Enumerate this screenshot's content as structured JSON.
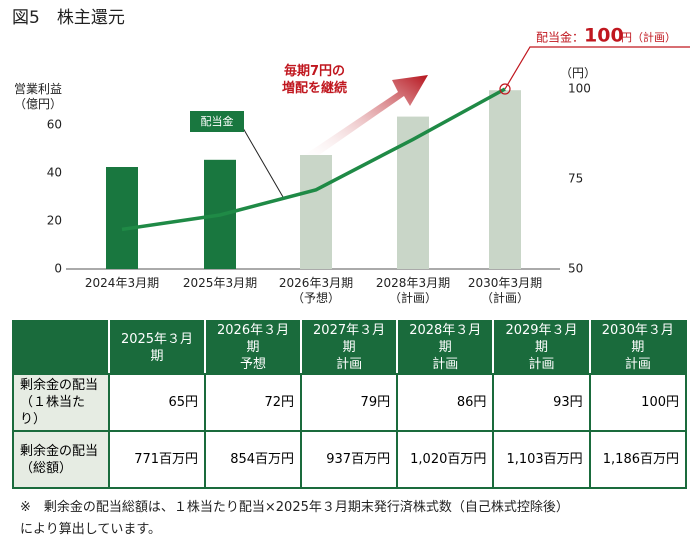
{
  "title": "図5　株主還元",
  "chart_data": {
    "type": "bar-line",
    "categories": [
      "2024年3月期",
      "2025年3月期",
      "2026年3月期\n（予想）",
      "2028年3月期\n（計画）",
      "2030年3月期\n（計画）"
    ],
    "ylabel": "営業利益\n（億円）",
    "y2label": "（円）",
    "ylim": [
      0,
      75
    ],
    "yticks": [
      0,
      20,
      40,
      60
    ],
    "y2lim": [
      50,
      100
    ],
    "y2ticks": [
      50,
      75,
      100
    ],
    "series": [
      {
        "type": "bar",
        "colors": [
          "#19773f",
          "#19773f",
          "#c9d6c8",
          "#c9d6c8",
          "#c9d6c8"
        ],
        "values": [
          42.5,
          45.5,
          47.5,
          63.5,
          74.5
        ]
      },
      {
        "type": "line",
        "name": "配当金",
        "axis": "y2",
        "color": "#1f8a46",
        "values": [
          61,
          65,
          72,
          86,
          100
        ]
      }
    ],
    "annotations": {
      "growth": "毎期7円の\n増配を継続",
      "target_prefix": "配当金：",
      "target_value": "100",
      "target_suffix": "円（計画）"
    }
  },
  "table": {
    "header": [
      "",
      "2025年３月期",
      "2026年３月期\n予想",
      "2027年３月期\n計画",
      "2028年３月期\n計画",
      "2029年３月期\n計画",
      "2030年３月期\n計画"
    ],
    "rows": [
      [
        "剰余金の配当\n（１株当たり）",
        "65円",
        "72円",
        "79円",
        "86円",
        "93円",
        "100円"
      ],
      [
        "剰余金の配当\n（総額）",
        "771百万円",
        "854百万円",
        "937百万円",
        "1,020百万円",
        "1,103百万円",
        "1,186百万円"
      ]
    ]
  },
  "footnote": "※　剰余金の配当総額は、１株当たり配当×2025年３月期末発行済株式数（自己株式控除後）\nにより算出しています。"
}
